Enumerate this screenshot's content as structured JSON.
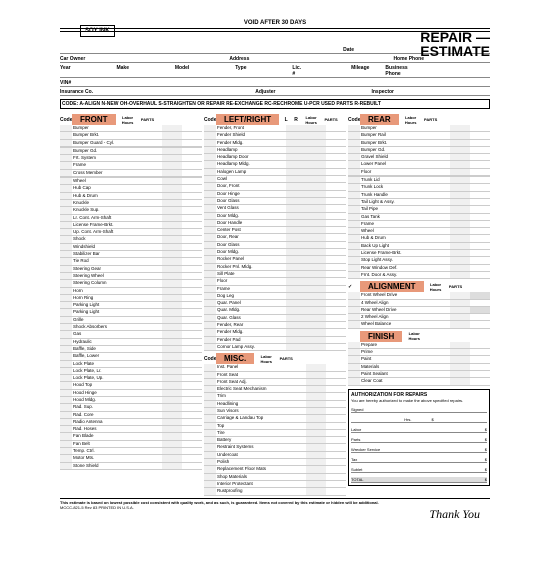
{
  "header": {
    "logo": "SOY INK",
    "void": "VOID AFTER 30 DAYS",
    "title1": "REPAIR —",
    "title2": "ESTIMATE"
  },
  "info": {
    "date": "Date",
    "owner": "Car Owner",
    "address": "Address",
    "hphone": "Home Phone",
    "year": "Year",
    "make": "Make",
    "model": "Model",
    "type": "Type",
    "lic": "Lic. #",
    "mileage": "Mileage",
    "bphone": "Business Phone",
    "vin": "VIN#",
    "ins": "Insurance Co.",
    "adjuster": "Adjuster",
    "inspector": "Inspector"
  },
  "codebar": "CODE:   A-ALIGN  N-NEW  OH-OVERHAUL  S-STRAIGHTEN OR REPAIR  RE-EXCHANGE  RC-RECHROME  U-PCR USED PARTS  R-REBUILT",
  "labels": {
    "code": "Code",
    "lh": "Labor Hours",
    "parts": "PARTS",
    "l": "L",
    "r": "R"
  },
  "sections": {
    "front": {
      "title": "FRONT",
      "items": [
        "Bumper",
        "Bumper Brkt.",
        "Bumper Guard - Cyl.",
        "",
        "Bumper Gd.",
        "Frt. System",
        "Frame",
        "Cross Member",
        "",
        "Wheel",
        "Hub Cap",
        "Hub & Drum",
        "Knuckle",
        "Knuckle Sup.",
        "Lr. Cont. Arm-Shaft",
        "License Frame-Brkt.",
        "Up. Cont. Arm-Shaft",
        "Shock",
        "Windshield",
        "Stabilizer Bar",
        "Tie Rod",
        "Steering Gear",
        "Steering Wheel",
        "Steering Column",
        "Horn",
        "Horn Ring",
        "Parking Light",
        "Parking Light",
        "Grille",
        "Shock Absorbers",
        "   Gas",
        "   Hydraulic"
      ]
    },
    "left": {
      "title": "",
      "items": [
        "Baffle, Side",
        "Baffle, Lower",
        "Lock Plate",
        "Lock Plate, Lr.",
        "Lock Plate, Up.",
        "Hood Top",
        "Hood Hinge",
        "Hood Mldg.",
        "Rad. Sup.",
        "Rad. Core",
        "Radio Antenna",
        "Rad. Hoses",
        "Fan Blade",
        "Fan Belt",
        "Temp. Ctrl.",
        "Motor Mts.",
        "Stone Shield"
      ]
    },
    "lr": {
      "title": "LEFT/RIGHT",
      "items": [
        "Fender, Front",
        "Fender Shield",
        "Fender Mldg.",
        "Headlamp",
        "Headlamp Door",
        "Headlamp Mldg.",
        "Halogen Lamp",
        "Cowl",
        "Door, Front",
        "Door Hinge",
        "Door Glass",
        "Vent Glass",
        "Door Mldg.",
        "Door Handle",
        "Center Post",
        "Door, Rear",
        "Door Glass",
        "Door Mldg.",
        "Rocker Panel",
        "Rocker Pnl. Mldg.",
        "Sill Plate",
        "Floor",
        "Frame",
        "Dog Leg",
        "Quar. Panel",
        "Quar. Mldg.",
        "Quar. Glass",
        "Fender, Rear",
        "Fender Mldg.",
        "Fender Pad",
        "Cornor Lamp Assy."
      ]
    },
    "misc": {
      "title": "MISC.",
      "items": [
        "Inst. Panel",
        "Front Seat",
        "Front Seat Adj.",
        "Electric Seat Mechanism",
        "Trim",
        "Headlining",
        "Sun Visors",
        "Carriage & Landau Top",
        "Top",
        "Tire",
        "Battery",
        "Restraint Systems",
        "Undercoat",
        "Polish",
        "Replacement Floor Mats",
        "Shop Materials",
        "Interior Protectant",
        "Rustproofing"
      ]
    },
    "rear": {
      "title": "REAR",
      "items": [
        "Bumper",
        "Bumper Rail",
        "Bumper Brkt.",
        "Bumper Gd.",
        "Gravel Shield",
        "Lower Panel",
        "Floor",
        "",
        "Trunk Lid",
        "Trunk Lock",
        "Trunk Handle",
        "Tail Light & Assy.",
        "Tail Pipe",
        "Gas Tank",
        "Frame",
        "Wheel",
        "Hub & Drum",
        "Back Up Light",
        "License Frame-Brkt.",
        "Stop Light Assy.",
        "Rear Window Def.",
        "Frnt. Door & Assy."
      ]
    },
    "align": {
      "title": "ALIGNMENT",
      "items": [
        "Front Wheel Drive",
        "4 Wheel Align",
        "Rear Wheel Drive",
        "2 Wheel Align",
        "Wheel Balance"
      ]
    },
    "finish": {
      "title": "FINISH",
      "items": [
        "Prepare",
        "Prime",
        "Paint",
        "Materials",
        "Paint Sealant",
        "Clear Coat"
      ]
    }
  },
  "auth": {
    "title": "AUTHORIZATION FOR REPAIRS",
    "text": "You are hereby authorized to make the above specified repairs.",
    "signed": "Signed",
    "hrs": "Hrs.",
    "rows": [
      "Labor",
      "Parts",
      "Wrecker Service",
      "Tax",
      "Sublet"
    ],
    "total": "TOTAL",
    "dollar": "$"
  },
  "footer": {
    "disclaimer": "This estimate is based on lowest possible cost consistent with quality work, and as such, is guaranteed. Items not covered by this estimate or hidden will be additional.",
    "form": "MCCC-821-5   Rev 83   PRINTED IN U.S.A.",
    "thanks": "Thank You"
  },
  "colors": {
    "accent": "#e8997a",
    "shade": "#ddd"
  }
}
